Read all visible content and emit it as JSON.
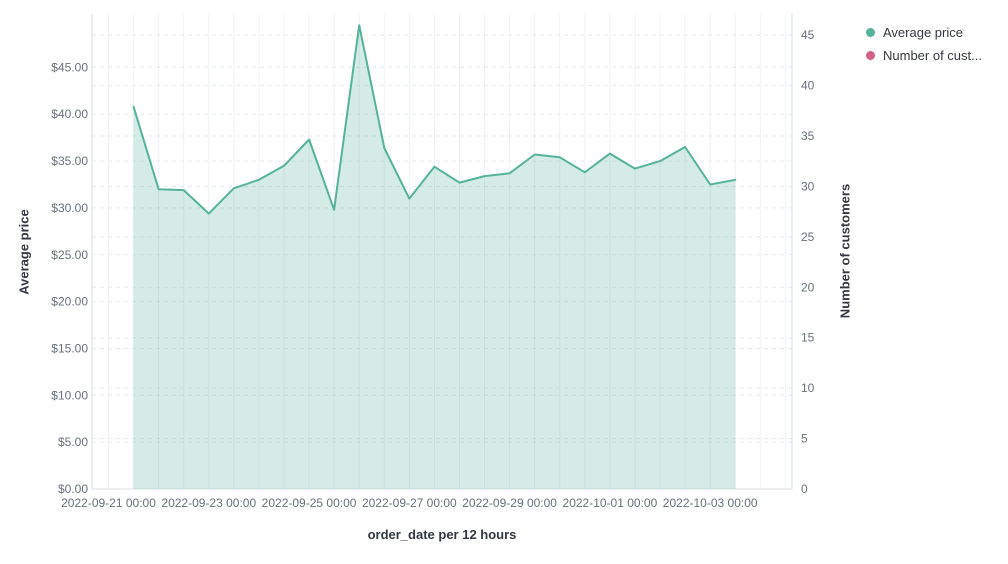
{
  "legend": {
    "items": [
      {
        "label": "Average price",
        "color": "#54B399"
      },
      {
        "label": "Number of cust...",
        "color": "#D36086"
      }
    ]
  },
  "chart_data": {
    "type": "area",
    "title": "",
    "xlabel": "order_date per 12 hours",
    "ylabel_left": "Average price",
    "ylabel_right": "Number of customers",
    "x_interval_hours": 12,
    "grid": true,
    "legend_position": "top-right",
    "ylim_left": [
      0,
      50.7
    ],
    "ylim_right": [
      0,
      47.1
    ],
    "y_left": {
      "tick_values": [
        0,
        5,
        10,
        15,
        20,
        25,
        30,
        35,
        40,
        45
      ],
      "tick_labels": [
        "$0.00",
        "$5.00",
        "$10.00",
        "$15.00",
        "$20.00",
        "$25.00",
        "$30.00",
        "$35.00",
        "$40.00",
        "$45.00"
      ]
    },
    "y_right": {
      "tick_values": [
        0,
        5,
        10,
        15,
        20,
        25,
        30,
        35,
        40,
        45
      ],
      "tick_labels": [
        "0",
        "5",
        "10",
        "15",
        "20",
        "25",
        "30",
        "35",
        "40",
        "45"
      ]
    },
    "x_ticks": [
      {
        "step": 0,
        "label": "2022-09-21 00:00"
      },
      {
        "step": 4,
        "label": "2022-09-23 00:00"
      },
      {
        "step": 8,
        "label": "2022-09-25 00:00"
      },
      {
        "step": 12,
        "label": "2022-09-27 00:00"
      },
      {
        "step": 16,
        "label": "2022-09-29 00:00"
      },
      {
        "step": 20,
        "label": "2022-10-01 00:00"
      },
      {
        "step": 24,
        "label": "2022-10-03 00:00"
      }
    ],
    "grid_step_count": 27,
    "series": [
      {
        "name": "Average price",
        "axis": "left",
        "color": "#54B399",
        "fill_opacity": 0.25,
        "x": [
          "2022-09-21 12:00",
          "2022-09-22 00:00",
          "2022-09-22 12:00",
          "2022-09-23 00:00",
          "2022-09-23 12:00",
          "2022-09-24 00:00",
          "2022-09-24 12:00",
          "2022-09-25 00:00",
          "2022-09-25 12:00",
          "2022-09-26 00:00",
          "2022-09-26 12:00",
          "2022-09-27 00:00",
          "2022-09-27 12:00",
          "2022-09-28 00:00",
          "2022-09-28 12:00",
          "2022-09-29 00:00",
          "2022-09-29 12:00",
          "2022-09-30 00:00",
          "2022-09-30 12:00",
          "2022-10-01 00:00",
          "2022-10-01 12:00",
          "2022-10-02 00:00",
          "2022-10-02 12:00",
          "2022-10-03 00:00",
          "2022-10-03 12:00"
        ],
        "steps": [
          1,
          2,
          3,
          4,
          5,
          6,
          7,
          8,
          9,
          10,
          11,
          12,
          13,
          14,
          15,
          16,
          17,
          18,
          19,
          20,
          21,
          22,
          23,
          24,
          25
        ],
        "values": [
          40.8,
          32.0,
          31.9,
          29.4,
          32.1,
          33.0,
          34.5,
          37.3,
          29.8,
          49.5,
          36.4,
          31.0,
          34.4,
          32.7,
          33.4,
          33.7,
          35.7,
          35.4,
          33.8,
          35.8,
          34.2,
          35.0,
          36.5,
          32.5,
          33.0
        ]
      },
      {
        "name": "Number of customers",
        "axis": "right",
        "color": "#D36086",
        "x": [],
        "steps": [],
        "values": []
      }
    ]
  }
}
